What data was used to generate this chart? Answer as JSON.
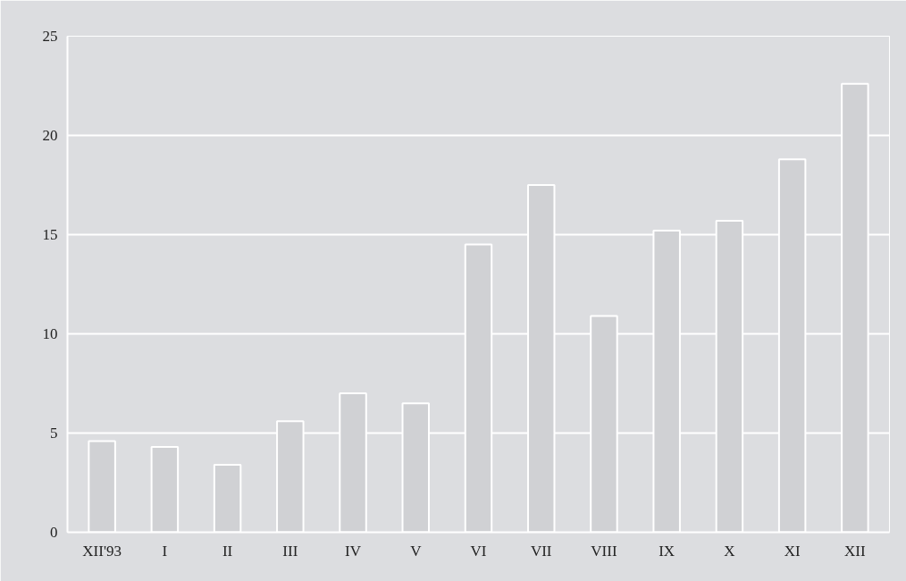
{
  "chart_data": {
    "type": "bar",
    "categories": [
      "XII'93",
      "I",
      "II",
      "III",
      "IV",
      "V",
      "VI",
      "VII",
      "VIII",
      "IX",
      "X",
      "XI",
      "XII"
    ],
    "values": [
      4.6,
      4.3,
      3.4,
      5.6,
      7.0,
      6.5,
      14.5,
      17.5,
      10.9,
      15.2,
      15.7,
      18.8,
      22.6
    ],
    "color": "#d0d1d4",
    "ylim": [
      0,
      25
    ],
    "yticks": [
      0,
      5,
      10,
      15,
      20,
      25
    ],
    "grid": "y"
  }
}
